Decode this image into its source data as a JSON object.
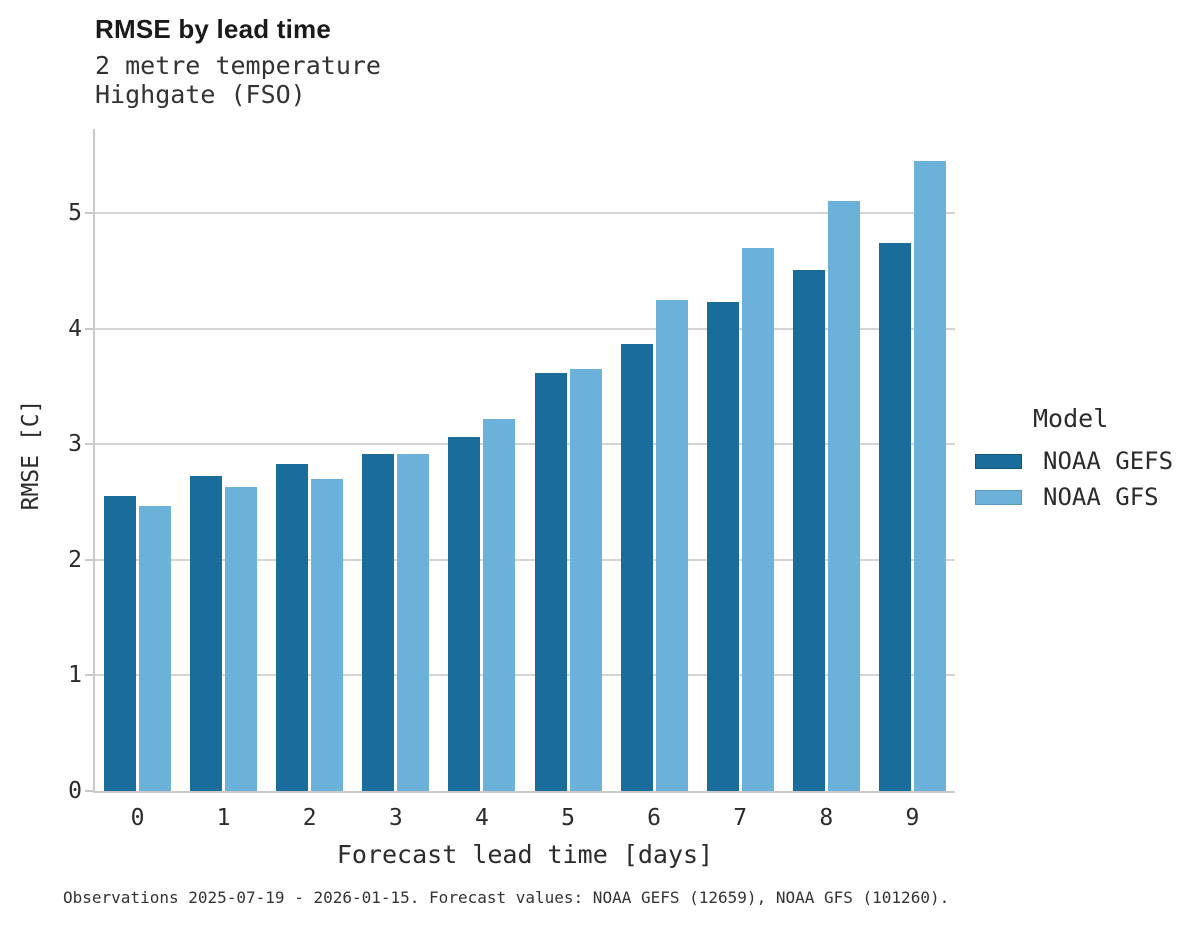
{
  "caption": "Observations 2025-07-19 - 2026-01-15. Forecast values: NOAA GEFS (12659), NOAA GFS (101260).",
  "legend": {
    "title": "Model"
  },
  "style": {
    "grid_color": "#d4d4d4",
    "spine_color": "#c9c9c9",
    "background": "#ffffff",
    "text_color": "#2b2b2b"
  },
  "chart_data": {
    "type": "bar",
    "title": "RMSE by lead time",
    "subtitle": [
      "2 metre temperature",
      "Highgate (FSO)"
    ],
    "categories": [
      "0",
      "1",
      "2",
      "3",
      "4",
      "5",
      "6",
      "7",
      "8",
      "9"
    ],
    "series": [
      {
        "name": "NOAA GEFS",
        "color": "#1A6C9A",
        "swatch_border": "#14577e",
        "values": [
          2.55,
          2.73,
          2.83,
          2.92,
          3.06,
          3.62,
          3.87,
          4.23,
          4.51,
          4.74
        ]
      },
      {
        "name": "NOAA GFS",
        "color": "#6CB1D9",
        "swatch_border": "#5897c0",
        "values": [
          2.47,
          2.63,
          2.7,
          2.92,
          3.22,
          3.65,
          4.25,
          4.7,
          5.11,
          5.45
        ]
      }
    ],
    "xlabel": "Forecast lead time [days]",
    "ylabel": "RMSE [C]",
    "ylim": [
      0,
      5.73
    ],
    "yticks": [
      0,
      1,
      2,
      3,
      4,
      5
    ],
    "grid": true,
    "legend_title": "Model",
    "legend_position": "right"
  }
}
